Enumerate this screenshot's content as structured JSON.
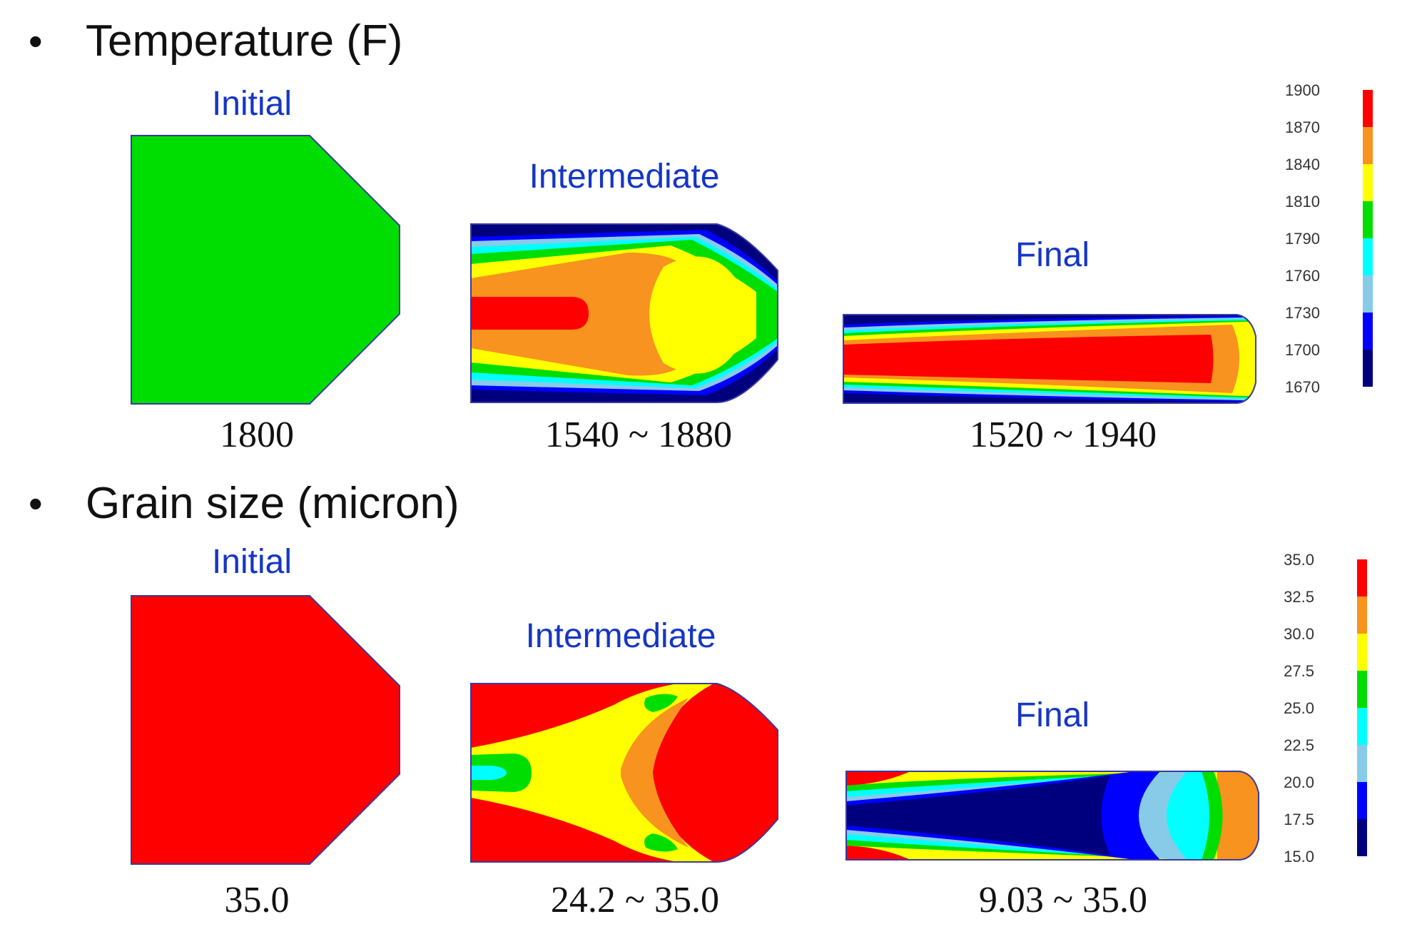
{
  "temperature": {
    "title": "Temperature (F)",
    "stages": [
      {
        "label": "Initial",
        "range": "1800"
      },
      {
        "label": "Intermediate",
        "range": "1540 ~ 1880"
      },
      {
        "label": "Final",
        "range": "1520 ~ 1940"
      }
    ],
    "legend": {
      "values": [
        "1900",
        "1870",
        "1840",
        "1810",
        "1790",
        "1760",
        "1730",
        "1700",
        "1670"
      ],
      "colors": [
        "#ff0000",
        "#f7931e",
        "#ffff00",
        "#00dd00",
        "#00ffff",
        "#87cbe8",
        "#0000ff",
        "#00007f"
      ]
    }
  },
  "grain": {
    "title": "Grain size (micron)",
    "stages": [
      {
        "label": "Initial",
        "range": "35.0"
      },
      {
        "label": "Intermediate",
        "range": "24.2 ~ 35.0"
      },
      {
        "label": "Final",
        "range": "9.03 ~ 35.0"
      }
    ],
    "legend": {
      "values": [
        "35.0",
        "32.5",
        "30.0",
        "27.5",
        "25.0",
        "22.5",
        "20.0",
        "17.5",
        "15.0"
      ],
      "colors": [
        "#ff0000",
        "#f7931e",
        "#ffff00",
        "#00dd00",
        "#00ffff",
        "#87cbe8",
        "#0000ff",
        "#00007f"
      ]
    }
  },
  "palette": {
    "red": "#ff0000",
    "orange": "#f7931e",
    "yellow": "#ffff00",
    "green": "#00dd00",
    "cyan": "#00ffff",
    "lightblue": "#87cbe8",
    "blue": "#0000ff",
    "navy": "#00007f",
    "label_blue": "#1636c4"
  }
}
